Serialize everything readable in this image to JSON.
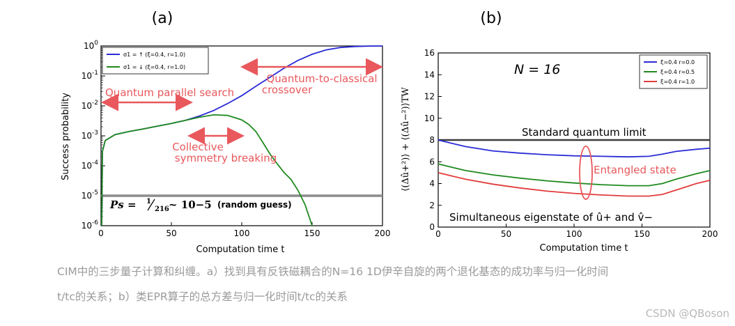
{
  "panel_labels": {
    "a": "(a)",
    "b": "(b)"
  },
  "caption": {
    "line1": "CIM中的三步量子计算和纠缠。a）找到具有反铁磁耦合的N=16 1D伊辛自旋的两个退化基态的成功率与归一化时间",
    "line2": "t/tc的关系；b）类EPR算子的总方差与归一化时间t/tc的关系"
  },
  "watermark": "CSDN @QBoson",
  "colors": {
    "blue": "#2b2bd6",
    "green": "#1f8a1f",
    "red": "#e33b3b",
    "gray": "#8c8c8c",
    "annotation": "#e8585c"
  },
  "chart_data": [
    {
      "type": "line",
      "yscale": "log",
      "xlabel": "Computation time t",
      "ylabel": "Success probability",
      "xlim": [
        0,
        200
      ],
      "ylim": [
        1e-06,
        1
      ],
      "xticks": [
        "0",
        "50",
        "100",
        "150",
        "200"
      ],
      "yticks": [
        "10-6",
        "10-5",
        "10-4",
        "10-3",
        "10-2",
        "10-1",
        "100"
      ],
      "legend": [
        "σ1 = ↑ (ξ=0.4, r=1.0)",
        "σ1 = ↓ (ξ=0.4, r=1.0)"
      ],
      "legend_position": "top-left",
      "annotations": {
        "parallel": "Quantum parallel search",
        "crossover_1": "Quantum-to-classical",
        "crossover_2": "crossover",
        "collective_1": "Collective",
        "collective_2": "symmetry breaking",
        "formula_lhs": "Ps = ",
        "formula_frac_num": "1",
        "formula_frac_den": "216",
        "formula_rhs": " ~ 10−5",
        "formula_note": "(random guess)"
      },
      "baseline": 1e-05,
      "series": [
        {
          "name": "σ1 = ↑ (ξ=0.4, r=1.0)",
          "x": [
            0.5,
            1,
            3,
            10,
            20,
            30,
            40,
            50,
            60,
            70,
            80,
            90,
            100,
            110,
            120,
            130,
            140,
            150,
            160,
            170,
            180,
            190,
            200
          ],
          "y": [
            1e-06,
            0.0003,
            0.0007,
            0.0011,
            0.0014,
            0.0017,
            0.0021,
            0.0026,
            0.0033,
            0.0046,
            0.007,
            0.012,
            0.022,
            0.045,
            0.09,
            0.18,
            0.33,
            0.53,
            0.74,
            0.89,
            0.96,
            0.99,
            1.0
          ]
        },
        {
          "name": "σ1 = ↓ (ξ=0.4, r=1.0)",
          "x": [
            0.5,
            1,
            3,
            10,
            20,
            30,
            40,
            50,
            60,
            70,
            80,
            90,
            100,
            105,
            110,
            115,
            120,
            125,
            130,
            135,
            140,
            145,
            150
          ],
          "y": [
            1e-06,
            0.0003,
            0.0007,
            0.0011,
            0.0014,
            0.0017,
            0.0021,
            0.0026,
            0.0033,
            0.0042,
            0.005,
            0.0048,
            0.0034,
            0.0024,
            0.0014,
            0.0006,
            0.00025,
            0.00012,
            6e-05,
            3.5e-05,
            1.5e-05,
            5e-06,
            1e-06
          ]
        }
      ]
    },
    {
      "type": "line",
      "xlabel": "Computation time t",
      "ylabel": "⟨(Δû+²)⟩ + ⟨(Δû−²)⟩TW",
      "xlim": [
        0,
        200
      ],
      "ylim": [
        0,
        16
      ],
      "xticks": [
        "0",
        "50",
        "100",
        "150",
        "200"
      ],
      "yticks": [
        "0",
        "2",
        "4",
        "6",
        "8",
        "10",
        "12",
        "14",
        "16"
      ],
      "legend": [
        "ξ=0.4 r=0.0",
        "ξ=0.4 r=0.5",
        "ξ=0.4 r=1.0"
      ],
      "legend_position": "top-right",
      "annotations": {
        "n_label": "N = 16",
        "sql": "Standard quantum limit",
        "entangled": "Entangled state",
        "eigen": "Simultaneous eigenstate of û+ and v̂−"
      },
      "sql_value": 8,
      "series": [
        {
          "name": "ξ=0.4 r=0.0",
          "x": [
            0,
            10,
            20,
            40,
            60,
            80,
            100,
            120,
            140,
            155,
            165,
            175,
            190,
            200
          ],
          "y": [
            8.0,
            7.7,
            7.4,
            7.0,
            6.8,
            6.65,
            6.55,
            6.5,
            6.45,
            6.5,
            6.7,
            6.95,
            7.15,
            7.25
          ]
        },
        {
          "name": "ξ=0.4 r=0.5",
          "x": [
            0,
            10,
            20,
            40,
            60,
            80,
            100,
            120,
            140,
            155,
            165,
            175,
            190,
            200
          ],
          "y": [
            5.8,
            5.5,
            5.2,
            4.8,
            4.5,
            4.25,
            4.05,
            3.9,
            3.8,
            3.8,
            4.0,
            4.4,
            4.9,
            5.2
          ]
        },
        {
          "name": "ξ=0.4 r=1.0",
          "x": [
            0,
            10,
            20,
            40,
            60,
            80,
            100,
            120,
            140,
            155,
            165,
            175,
            190,
            200
          ],
          "y": [
            5.0,
            4.7,
            4.4,
            3.95,
            3.6,
            3.3,
            3.1,
            2.95,
            2.85,
            2.85,
            3.0,
            3.4,
            4.0,
            4.3
          ]
        }
      ]
    }
  ]
}
